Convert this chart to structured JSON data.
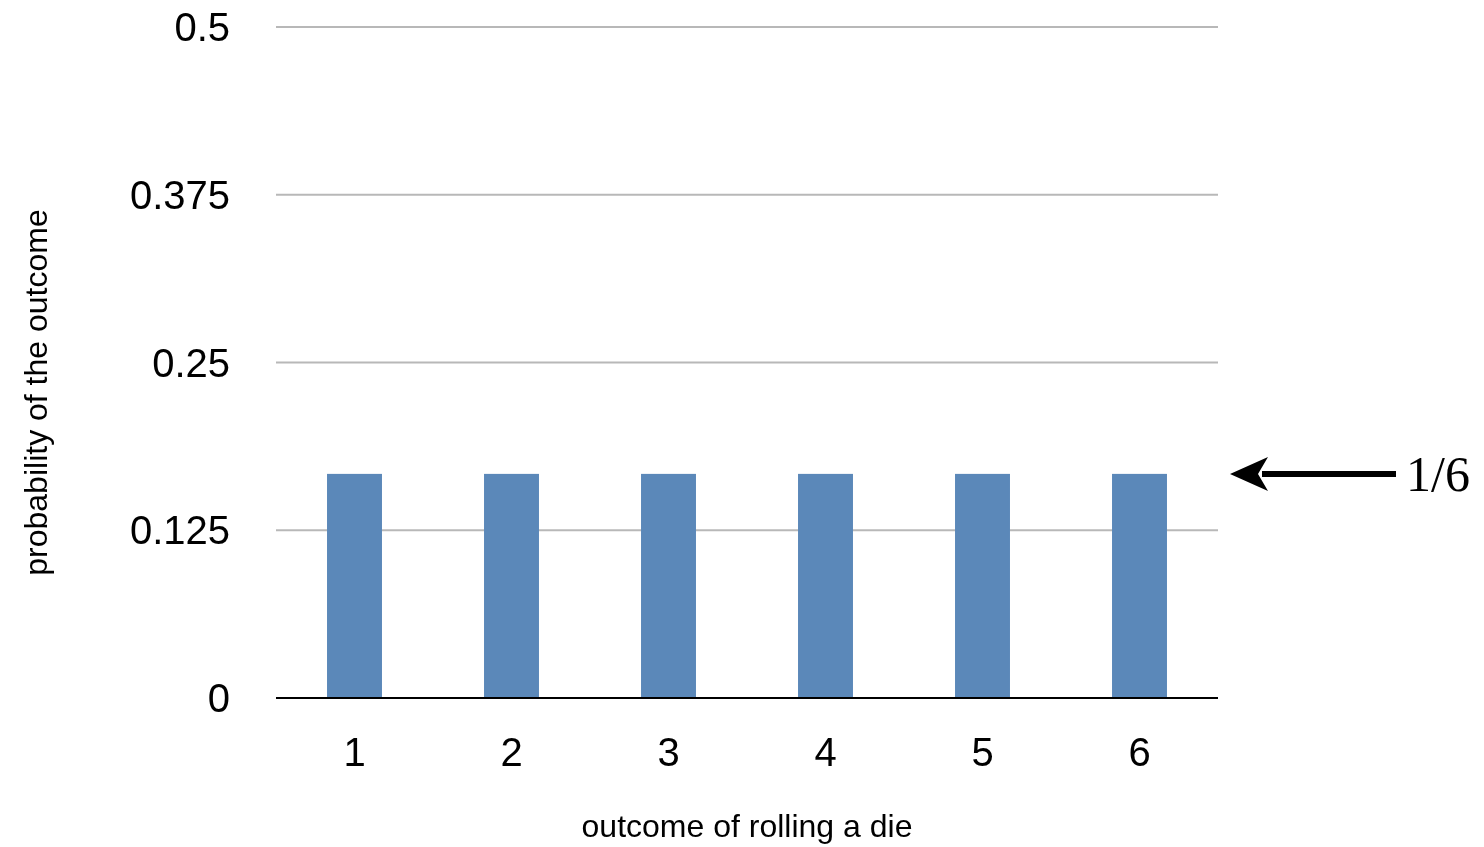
{
  "chart_data": {
    "type": "bar",
    "xlabel": "outcome of rolling a die",
    "ylabel": "probability of the outcome",
    "categories": [
      "1",
      "2",
      "3",
      "4",
      "5",
      "6"
    ],
    "values": [
      0.167,
      0.167,
      0.167,
      0.167,
      0.167,
      0.167
    ],
    "color": "#5b88b9",
    "ylim": [
      0,
      0.5
    ],
    "yticks": [
      0,
      0.125,
      0.25,
      0.375,
      0.5
    ],
    "grid": "y",
    "annotations": [
      "1/6"
    ]
  }
}
